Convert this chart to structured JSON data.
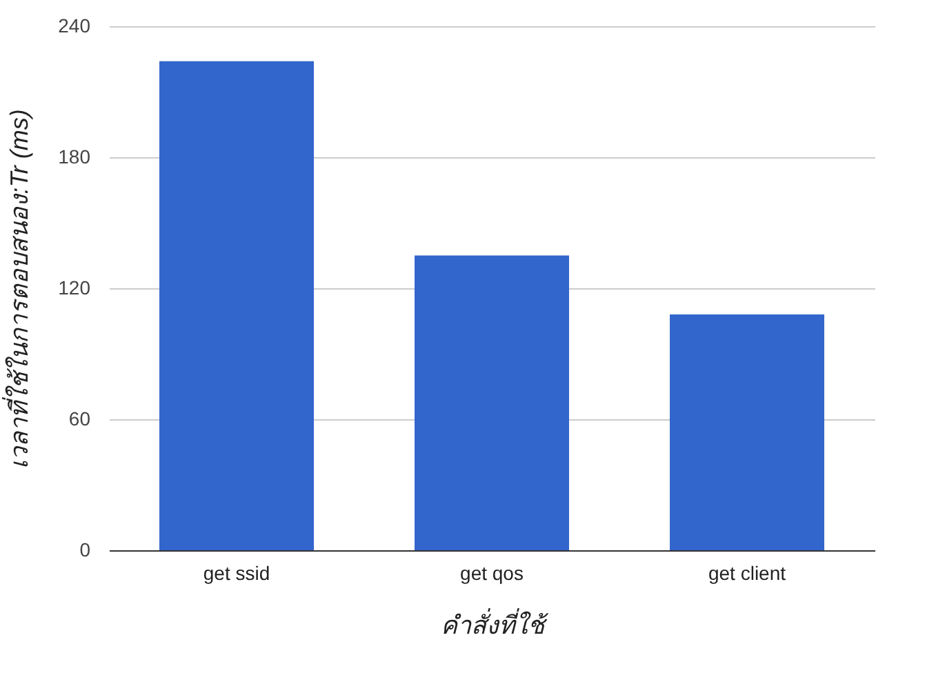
{
  "chart_data": {
    "type": "bar",
    "xlabel": "คำสั่งที่ใช้",
    "ylabel": "เวลาที่ใช้ในการตอบสนอง:Tr (ms)",
    "categories": [
      "get ssid",
      "get qos",
      "get client"
    ],
    "series": [
      {
        "color": "#3366cc",
        "values": [
          224,
          135,
          108
        ]
      }
    ],
    "ylim": [
      0,
      240
    ],
    "yticks": [
      0,
      60,
      120,
      180,
      240
    ],
    "grid": "y"
  }
}
